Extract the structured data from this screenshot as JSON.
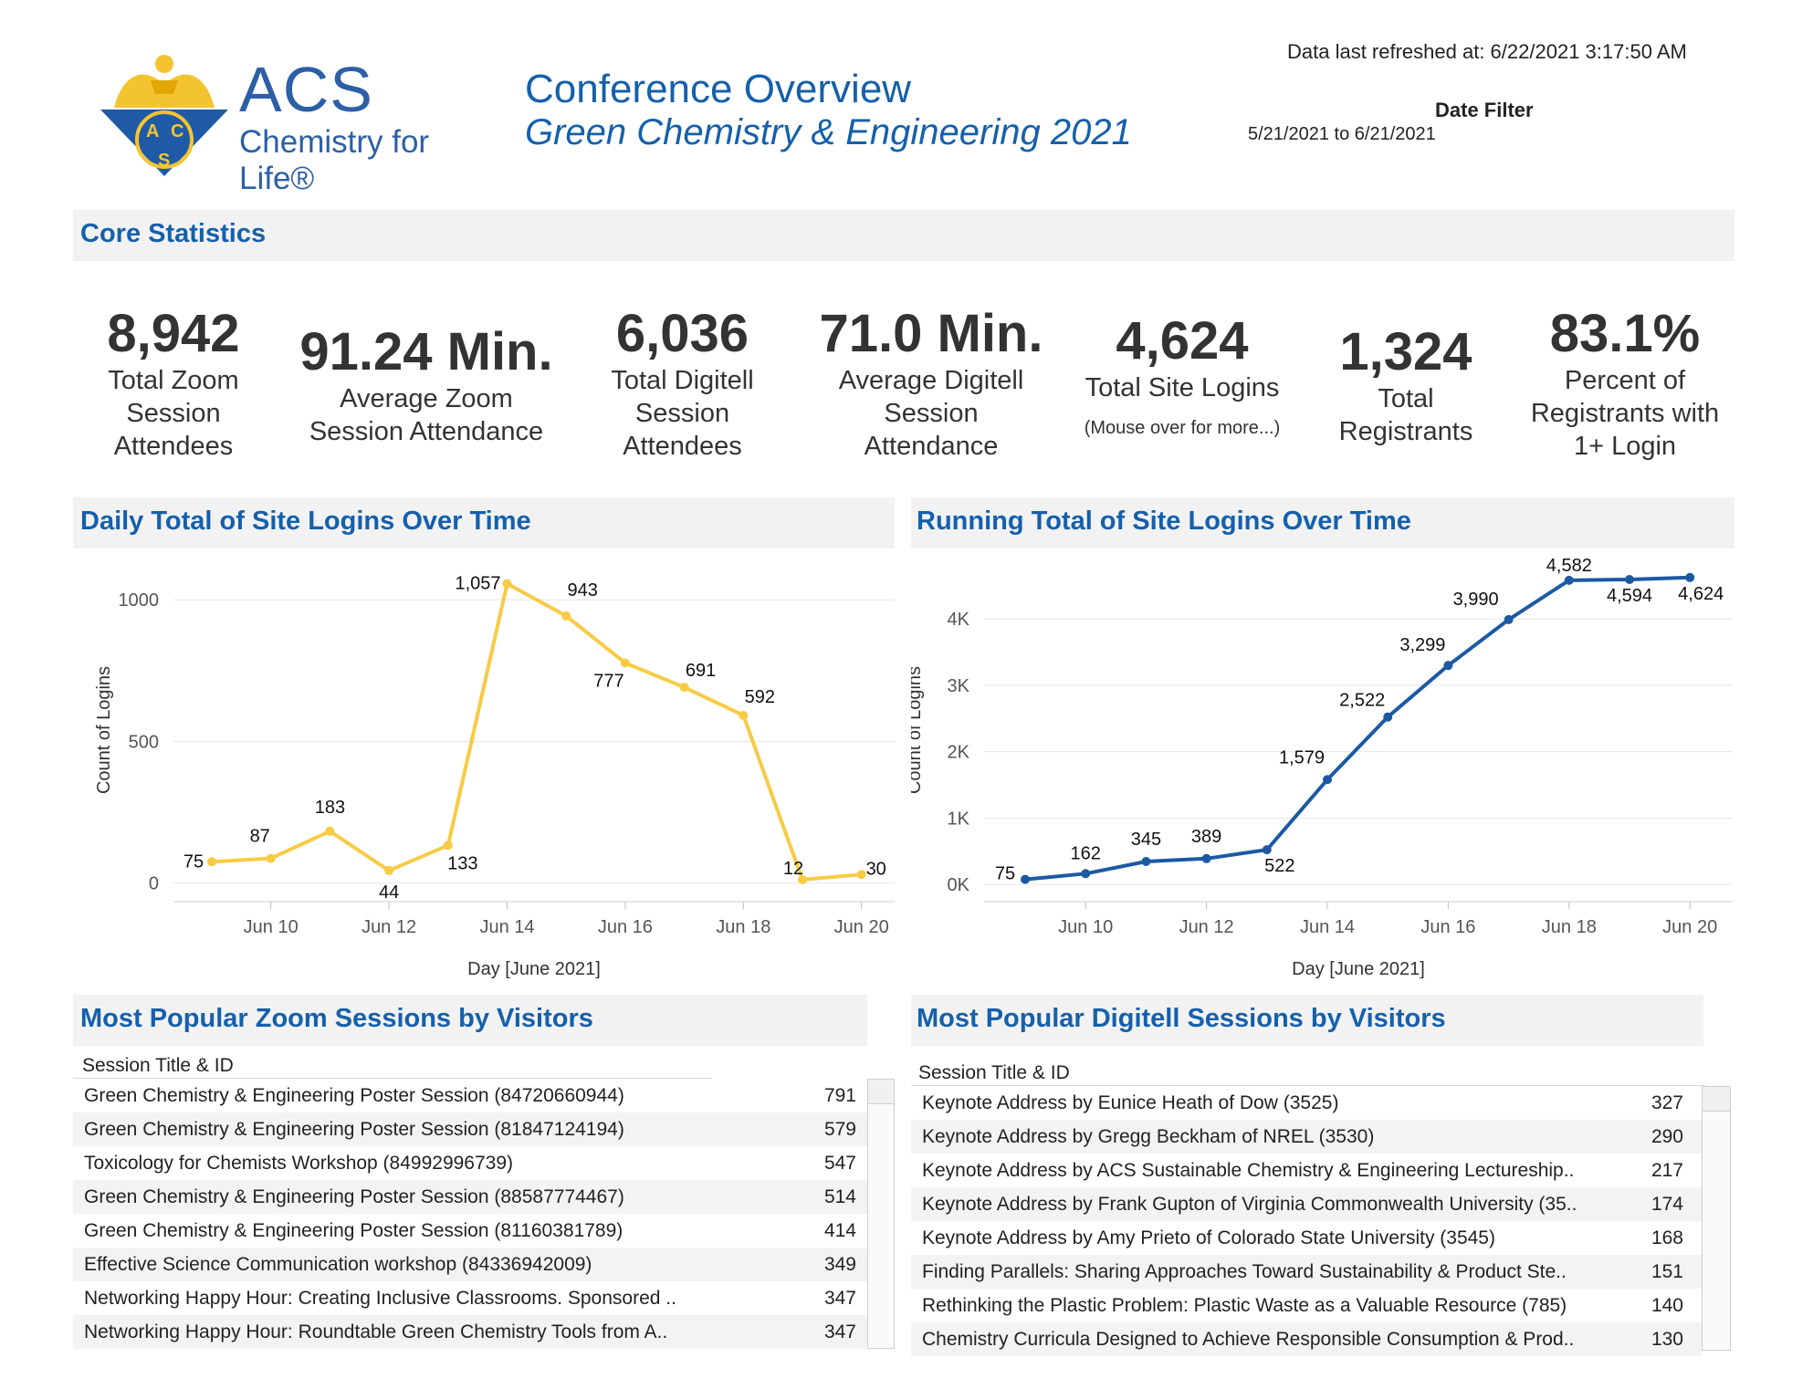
{
  "logo": {
    "acs": "ACS",
    "tagline": "Chemistry for Life®",
    "emblem_letters": [
      "A",
      "C",
      "S"
    ]
  },
  "header": {
    "title": "Conference Overview",
    "subtitle": "Green Chemistry & Engineering 2021",
    "refresh": "Data last refreshed at: 6/22/2021 3:17:50 AM",
    "filter_label": "Date Filter",
    "filter_value": "5/21/2021 to 6/21/2021"
  },
  "core": {
    "title": "Core Statistics",
    "stats": [
      {
        "value": "8,942",
        "label1": "Total Zoom",
        "label2": "Session",
        "label3": "Attendees"
      },
      {
        "value": "91.24 Min.",
        "label1": "Average Zoom",
        "label2": "Session Attendance"
      },
      {
        "value": "6,036",
        "label1": "Total Digitell",
        "label2": "Session",
        "label3": "Attendees"
      },
      {
        "value": "71.0 Min.",
        "label1": "Average Digitell",
        "label2": "Session",
        "label3": "Attendance"
      },
      {
        "value": "4,624",
        "label1": "Total Site Logins",
        "note": "(Mouse over for more...)"
      },
      {
        "value": "1,324",
        "label1": "Total",
        "label2": "Registrants"
      },
      {
        "value": "83.1%",
        "label1": "Percent of",
        "label2": "Registrants with",
        "label3": "1+ Login"
      }
    ]
  },
  "colors": {
    "accent": "#1560ac",
    "daily_line": "#f7cb45",
    "running_line": "#1b5aa3"
  },
  "chart_data": [
    {
      "type": "line",
      "title": "Daily Total of Site Logins Over Time",
      "xlabel": "Day [June 2021]",
      "ylabel": "Count of Logins",
      "x": [
        "Jun 9",
        "Jun 10",
        "Jun 11",
        "Jun 12",
        "Jun 13",
        "Jun 14",
        "Jun 15",
        "Jun 16",
        "Jun 17",
        "Jun 18",
        "Jun 19",
        "Jun 20"
      ],
      "xticks": [
        "Jun 10",
        "Jun 12",
        "Jun 14",
        "Jun 16",
        "Jun 18",
        "Jun 20"
      ],
      "yticks": [
        "0",
        "500",
        "1000"
      ],
      "ytick_values": [
        0,
        500,
        1000
      ],
      "ylim": [
        -40,
        1120
      ],
      "values": [
        75,
        87,
        183,
        44,
        133,
        1057,
        943,
        777,
        691,
        592,
        12,
        30
      ],
      "labels": [
        "75",
        "87",
        "183",
        "44",
        "133",
        "1,057",
        "943",
        "777",
        "691",
        "592",
        "12",
        "30"
      ],
      "grid": true
    },
    {
      "type": "line",
      "title": "Running Total of Site Logins Over Time",
      "xlabel": "Day [June 2021]",
      "ylabel": "Count of Logins",
      "x": [
        "Jun 9",
        "Jun 10",
        "Jun 11",
        "Jun 12",
        "Jun 13",
        "Jun 14",
        "Jun 15",
        "Jun 16",
        "Jun 17",
        "Jun 18",
        "Jun 19",
        "Jun 20"
      ],
      "xticks": [
        "Jun 10",
        "Jun 12",
        "Jun 14",
        "Jun 16",
        "Jun 18",
        "Jun 20"
      ],
      "yticks": [
        "0K",
        "1K",
        "2K",
        "3K",
        "4K"
      ],
      "ytick_values": [
        0,
        1000,
        2000,
        3000,
        4000
      ],
      "ylim": [
        -150,
        4800
      ],
      "values": [
        75,
        162,
        345,
        389,
        522,
        1579,
        2522,
        3299,
        3990,
        4582,
        4594,
        4624
      ],
      "labels": [
        "75",
        "162",
        "345",
        "389",
        "522",
        "1,579",
        "2,522",
        "3,299",
        "3,990",
        "4,582",
        "4,594",
        "4,624"
      ],
      "grid": true
    }
  ],
  "zoom_table": {
    "title": "Most Popular Zoom Sessions by Visitors",
    "header": "Session Title & ID",
    "rows": [
      {
        "title": "Green Chemistry & Engineering Poster Session (84720660944)",
        "value": "791"
      },
      {
        "title": "Green Chemistry & Engineering Poster Session (81847124194)",
        "value": "579"
      },
      {
        "title": "Toxicology for Chemists Workshop (84992996739)",
        "value": "547"
      },
      {
        "title": "Green Chemistry & Engineering Poster Session (88587774467)",
        "value": "514"
      },
      {
        "title": "Green Chemistry & Engineering Poster Session (81160381789)",
        "value": "414"
      },
      {
        "title": "Effective Science Communication workshop (84336942009)",
        "value": "349"
      },
      {
        "title": "Networking Happy Hour: Creating Inclusive Classrooms. Sponsored ..",
        "value": "347"
      },
      {
        "title": "Networking Happy Hour: Roundtable Green Chemistry Tools from A..",
        "value": "347"
      }
    ]
  },
  "digitell_table": {
    "title": "Most Popular Digitell Sessions by Visitors",
    "header": "Session Title & ID",
    "rows": [
      {
        "title": "Keynote Address by Eunice Heath of Dow (3525)",
        "value": "327"
      },
      {
        "title": "Keynote Address by Gregg Beckham of NREL (3530)",
        "value": "290"
      },
      {
        "title": "Keynote Address by ACS Sustainable Chemistry & Engineering Lectureship..",
        "value": "217"
      },
      {
        "title": "Keynote Address by Frank Gupton of Virginia Commonwealth University (35..",
        "value": "174"
      },
      {
        "title": "Keynote Address by Amy Prieto of Colorado State University (3545)",
        "value": "168"
      },
      {
        "title": "Finding Parallels: Sharing Approaches Toward Sustainability & Product Ste..",
        "value": "151"
      },
      {
        "title": "Rethinking the Plastic Problem: Plastic Waste as a Valuable Resource (785)",
        "value": "140"
      },
      {
        "title": "Chemistry Curricula Designed to Achieve Responsible Consumption & Prod..",
        "value": "130"
      }
    ]
  }
}
